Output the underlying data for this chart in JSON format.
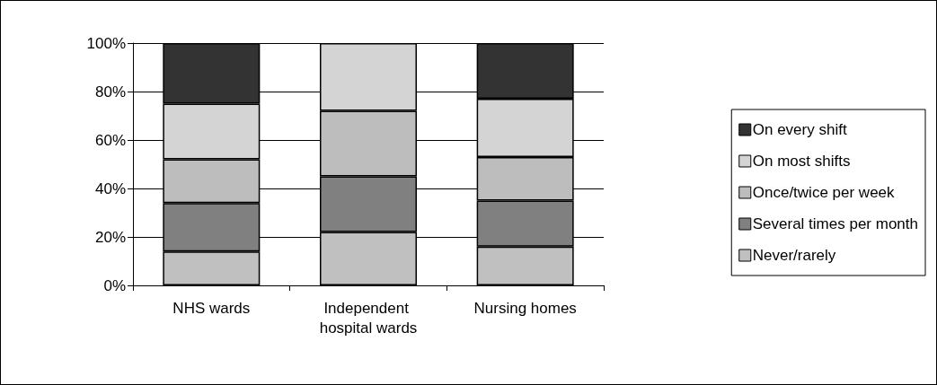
{
  "chart_data": {
    "type": "bar",
    "stacked": true,
    "categories": [
      "NHS wards",
      "Independent hospital wards",
      "Nursing homes"
    ],
    "series": [
      {
        "name": "Never/rarely",
        "color": "#c0c0c0",
        "values": [
          14,
          22,
          16
        ]
      },
      {
        "name": "Several times per month",
        "color": "#808080",
        "values": [
          20,
          23,
          19
        ]
      },
      {
        "name": "Once/twice per week",
        "color": "#bdbdbd",
        "values": [
          18,
          27,
          18
        ]
      },
      {
        "name": "On most shifts",
        "color": "#d4d4d4",
        "values": [
          23,
          28,
          24
        ]
      },
      {
        "name": "On every shift",
        "color": "#333333",
        "values": [
          25,
          0,
          23
        ]
      }
    ],
    "ylim": [
      0,
      100
    ],
    "yticks": [
      {
        "value": 0,
        "label": "0%"
      },
      {
        "value": 20,
        "label": "20%"
      },
      {
        "value": 40,
        "label": "40%"
      },
      {
        "value": 60,
        "label": "60%"
      },
      {
        "value": 80,
        "label": "80%"
      },
      {
        "value": 100,
        "label": "100%"
      }
    ],
    "grid": "y",
    "legend": "right"
  }
}
